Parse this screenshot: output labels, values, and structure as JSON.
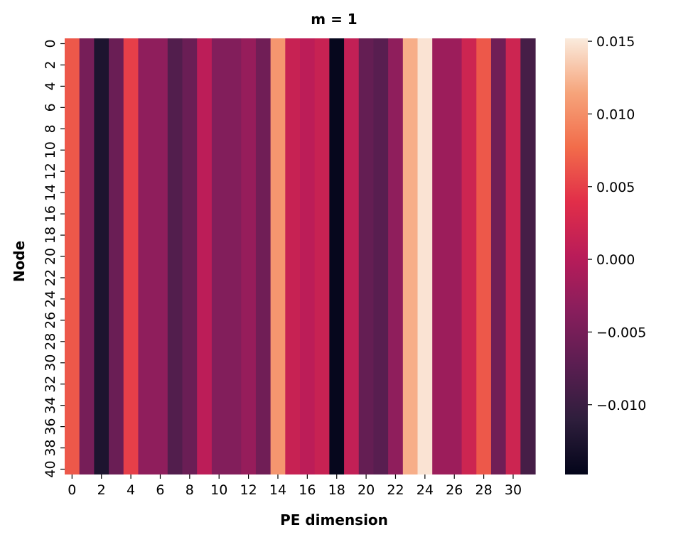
{
  "chart_data": {
    "type": "heatmap",
    "title": "m = 1",
    "xlabel": "PE dimension",
    "ylabel": "Node",
    "x_tick_labels": [
      "0",
      "2",
      "4",
      "6",
      "8",
      "10",
      "12",
      "14",
      "16",
      "18",
      "20",
      "22",
      "24",
      "26",
      "28",
      "30"
    ],
    "y_tick_labels": [
      "0",
      "2",
      "4",
      "6",
      "8",
      "10",
      "12",
      "14",
      "16",
      "18",
      "20",
      "22",
      "24",
      "26",
      "28",
      "30",
      "32",
      "34",
      "36",
      "38",
      "40"
    ],
    "n_columns": 32,
    "n_rows": 41,
    "row_note": "all nodes share the same value per PE dimension",
    "column_values": [
      0.0065,
      -0.005,
      -0.0125,
      -0.006,
      0.005,
      -0.003,
      -0.003,
      -0.008,
      -0.006,
      0.0005,
      -0.004,
      -0.004,
      -0.0025,
      -0.0055,
      0.0105,
      0.0015,
      0.0005,
      0.0015,
      -0.0145,
      0.001,
      -0.0065,
      -0.0075,
      -0.003,
      0.012,
      0.0148,
      -0.002,
      -0.002,
      0.002,
      0.0065,
      -0.0055,
      0.002,
      -0.009
    ],
    "colorbar": {
      "min": -0.0148,
      "max": 0.0152,
      "ticks": [
        0.015,
        0.01,
        0.005,
        0.0,
        -0.005,
        -0.01
      ],
      "tick_labels": [
        "0.015",
        "0.010",
        "0.005",
        "0.000",
        "−0.005",
        "−0.010"
      ],
      "colormap": "rocket"
    }
  }
}
